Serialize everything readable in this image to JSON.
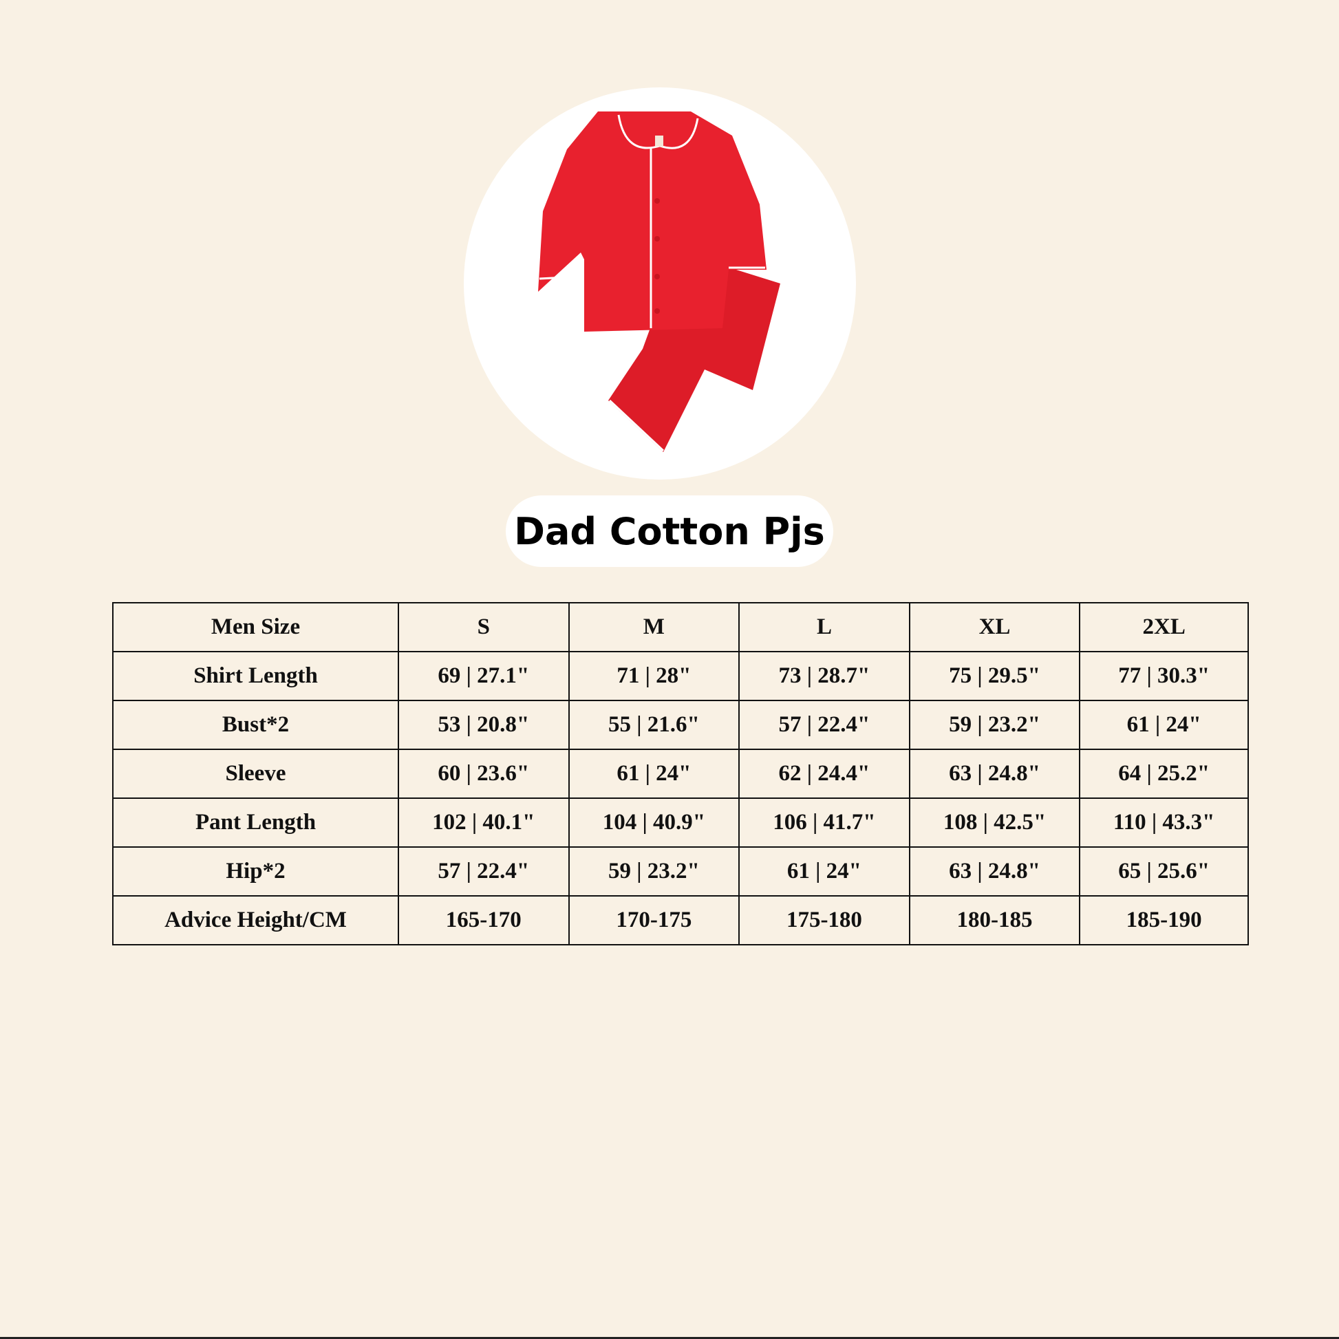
{
  "product": {
    "title": "Dad Cotton Pjs",
    "image": "red-pajama-set",
    "colors": {
      "background": "#f9f1e4",
      "garment": "#e8212e",
      "piping": "#ffffff"
    }
  },
  "size_table": {
    "headers": [
      "Men Size",
      "S",
      "M",
      "L",
      "XL",
      "2XL"
    ],
    "rows": [
      {
        "label": "Shirt Length",
        "values": [
          "69 | 27.1\"",
          "71 | 28\"",
          "73 | 28.7\"",
          "75 | 29.5\"",
          "77 | 30.3\""
        ]
      },
      {
        "label": "Bust*2",
        "values": [
          "53 | 20.8\"",
          "55 | 21.6\"",
          "57 | 22.4\"",
          "59 | 23.2\"",
          "61 | 24\""
        ]
      },
      {
        "label": "Sleeve",
        "values": [
          "60 | 23.6\"",
          "61 | 24\"",
          "62 | 24.4\"",
          "63 | 24.8\"",
          "64 | 25.2\""
        ]
      },
      {
        "label": "Pant Length",
        "values": [
          "102 | 40.1\"",
          "104 | 40.9\"",
          "106 | 41.7\"",
          "108 | 42.5\"",
          "110 | 43.3\""
        ]
      },
      {
        "label": "Hip*2",
        "values": [
          "57 | 22.4\"",
          "59 | 23.2\"",
          "61 | 24\"",
          "63 | 24.8\"",
          "65 | 25.6\""
        ]
      },
      {
        "label": "Advice Height/CM",
        "values": [
          "165-170",
          "170-175",
          "175-180",
          "180-185",
          "185-190"
        ]
      }
    ]
  }
}
